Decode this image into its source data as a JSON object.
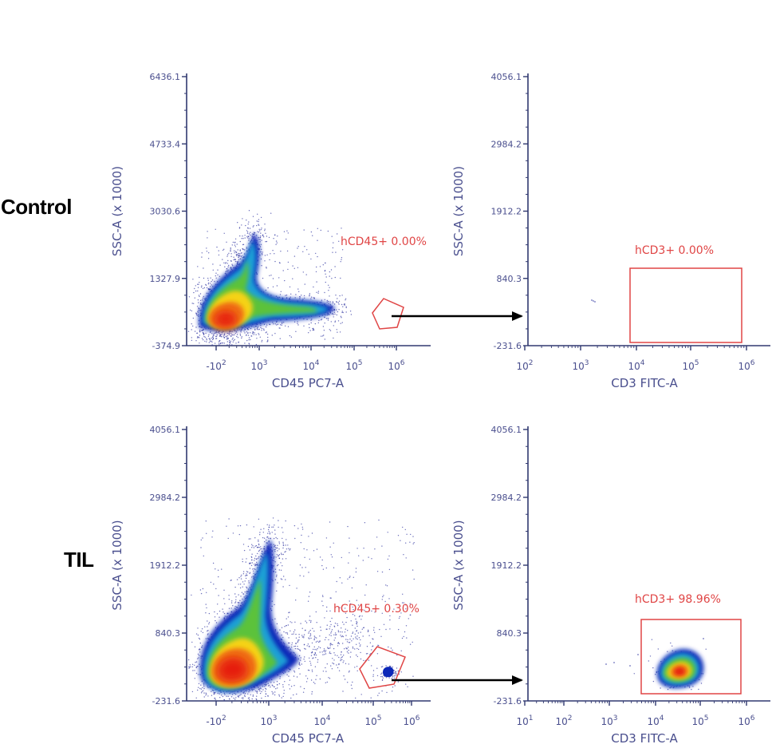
{
  "figure": {
    "row_labels": [
      "Control",
      "TIL"
    ]
  },
  "colors": {
    "axis": "#303870",
    "axis_text": "#4a4f8e",
    "gate": "#e04545",
    "arrow": "#000000",
    "dot": "#3a3fa6"
  },
  "chart_data": [
    {
      "id": "control-cd45",
      "type": "scatter",
      "subtype": "flow-cytometry-density",
      "row": "Control",
      "xlabel": "CD45 PC7-A",
      "ylabel": "SSC-A (x 1000)",
      "x_scale": "biexponential",
      "yticks": [
        "6436.1",
        "4733.4",
        "3030.6",
        "1327.9",
        "-374.9"
      ],
      "xticks": [
        "-10^2",
        "10^3",
        "10^4",
        "10^5",
        "10^6"
      ],
      "gate": {
        "name": "hCD45+",
        "percent": "0.00%",
        "label": "hCD45+ 0.00%",
        "shape": "polygon"
      },
      "population": "main"
    },
    {
      "id": "control-cd3",
      "type": "scatter",
      "subtype": "flow-cytometry-density",
      "row": "Control",
      "xlabel": "CD3 FITC-A",
      "ylabel": "SSC-A (x 1000)",
      "x_scale": "log",
      "yticks": [
        "4056.1",
        "2984.2",
        "1912.2",
        "840.3",
        "-231.6"
      ],
      "xticks": [
        "10^2",
        "10^3",
        "10^4",
        "10^5",
        "10^6"
      ],
      "gate": {
        "name": "hCD3+",
        "percent": "0.00%",
        "label": "hCD3+ 0.00%",
        "shape": "rectangle"
      },
      "population": "empty"
    },
    {
      "id": "til-cd45",
      "type": "scatter",
      "subtype": "flow-cytometry-density",
      "row": "TIL",
      "xlabel": "CD45 PC7-A",
      "ylabel": "SSC-A (x 1000)",
      "x_scale": "biexponential",
      "yticks": [
        "4056.1",
        "2984.2",
        "1912.2",
        "840.3",
        "-231.6"
      ],
      "xticks": [
        "-10^2",
        "10^3",
        "10^4",
        "10^5",
        "10^6"
      ],
      "gate": {
        "name": "hCD45+",
        "percent": "0.30%",
        "label": "hCD45+ 0.30%",
        "shape": "polygon"
      },
      "population": "main-with-gated-cluster"
    },
    {
      "id": "til-cd3",
      "type": "scatter",
      "subtype": "flow-cytometry-density",
      "row": "TIL",
      "xlabel": "CD3 FITC-A",
      "ylabel": "SSC-A (x 1000)",
      "x_scale": "log",
      "yticks": [
        "4056.1",
        "2984.2",
        "1912.2",
        "840.3",
        "-231.6"
      ],
      "xticks": [
        "10^1",
        "10^2",
        "10^3",
        "10^4",
        "10^5",
        "10^6"
      ],
      "gate": {
        "name": "hCD3+",
        "percent": "98.96%",
        "label": "hCD3+ 98.96%",
        "shape": "rectangle"
      },
      "population": "cd3-cluster"
    }
  ]
}
